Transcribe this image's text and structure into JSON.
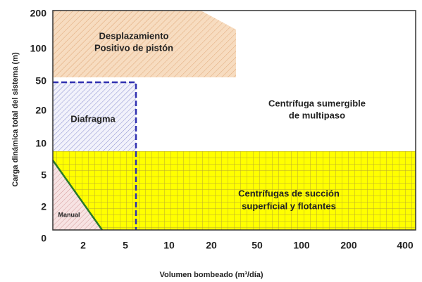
{
  "y_axis": {
    "label": "Carga dinámica total del sistema (m)",
    "ticks": [
      "200",
      "100",
      "50",
      "20",
      "10",
      "5",
      "2",
      "0"
    ]
  },
  "x_axis": {
    "label": "Volumen bombeado (m³/día)",
    "ticks": [
      "2",
      "5",
      "10",
      "20",
      "50",
      "100",
      "200",
      "400"
    ]
  },
  "regions": [
    {
      "lines": [
        "Desplazamiento",
        "Positivo de pistón"
      ]
    },
    {
      "lines": [
        "Diafragma"
      ]
    },
    {
      "lines": [
        "Centrífuga sumergible",
        "de multipaso"
      ]
    },
    {
      "lines": [
        "Centrífugas de succión",
        "superficial y flotantes"
      ]
    },
    {
      "lines": [
        "Manual"
      ]
    }
  ]
}
